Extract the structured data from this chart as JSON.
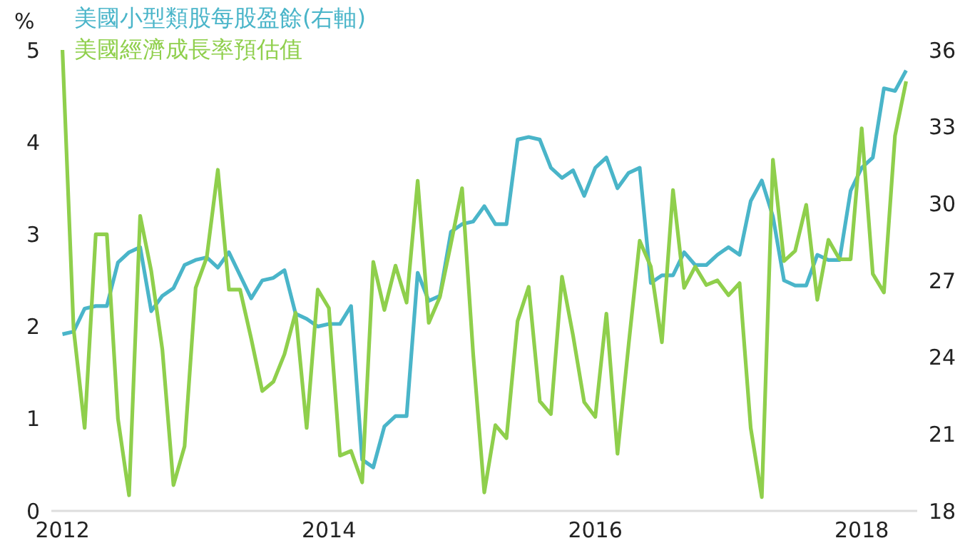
{
  "chart_data": {
    "type": "line",
    "ylabel": "%",
    "legend": "top left",
    "x": [
      "2012-01",
      "2012-02",
      "2012-03",
      "2012-04",
      "2012-05",
      "2012-06",
      "2012-07",
      "2012-08",
      "2012-09",
      "2012-10",
      "2012-11",
      "2012-12",
      "2013-01",
      "2013-02",
      "2013-03",
      "2013-04",
      "2013-05",
      "2013-06",
      "2013-07",
      "2013-08",
      "2013-09",
      "2013-10",
      "2013-11",
      "2013-12",
      "2014-01",
      "2014-02",
      "2014-03",
      "2014-04",
      "2014-05",
      "2014-06",
      "2014-07",
      "2014-08",
      "2014-09",
      "2014-10",
      "2014-11",
      "2014-12",
      "2015-01",
      "2015-02",
      "2015-03",
      "2015-04",
      "2015-05",
      "2015-06",
      "2015-07",
      "2015-08",
      "2015-09",
      "2015-10",
      "2015-11",
      "2015-12",
      "2016-01",
      "2016-02",
      "2016-03",
      "2016-04",
      "2016-05",
      "2016-06",
      "2016-07",
      "2016-08",
      "2016-09",
      "2016-10",
      "2016-11",
      "2016-12",
      "2017-01",
      "2017-02",
      "2017-03",
      "2017-04",
      "2017-05",
      "2017-06",
      "2017-07",
      "2017-08",
      "2017-09",
      "2017-10",
      "2017-11",
      "2017-12",
      "2018-01",
      "2018-02",
      "2018-03",
      "2018-04",
      "2018-05"
    ],
    "xlim": [
      "2011-12",
      "2018-06"
    ],
    "xticks": [
      "2012",
      "2014",
      "2016",
      "2018"
    ],
    "ylim": [
      0,
      5
    ],
    "yticks": [
      0,
      1,
      2,
      3,
      4,
      5
    ],
    "y2lim": [
      18,
      36
    ],
    "y2ticks": [
      18,
      21,
      24,
      27,
      30,
      33,
      36
    ],
    "series": [
      {
        "name": "美國小型類股每股盈餘(右軸)",
        "color": "#4ab5c9",
        "axis": "y2",
        "values": [
          24.9,
          25.0,
          25.9,
          26.0,
          26.0,
          27.7,
          28.1,
          28.3,
          25.8,
          26.4,
          26.7,
          27.6,
          27.8,
          27.9,
          27.5,
          28.1,
          27.2,
          26.3,
          27.0,
          27.1,
          27.4,
          25.7,
          25.5,
          25.2,
          25.3,
          25.3,
          26.0,
          20.0,
          19.7,
          21.3,
          21.7,
          21.7,
          27.3,
          26.2,
          26.4,
          28.9,
          29.2,
          29.3,
          29.9,
          29.2,
          29.2,
          32.5,
          32.6,
          32.5,
          31.4,
          31.0,
          31.3,
          30.3,
          31.4,
          31.8,
          30.6,
          31.2,
          31.4,
          26.9,
          27.2,
          27.2,
          28.1,
          27.6,
          27.6,
          28.0,
          28.3,
          28.0,
          30.1,
          30.9,
          29.5,
          27.0,
          26.8,
          26.8,
          28.0,
          27.8,
          27.8,
          30.5,
          31.4,
          31.8,
          34.5,
          34.4,
          35.2
        ]
      },
      {
        "name": "美國經濟成長率預估值",
        "color": "#8fcf4c",
        "values": [
          5.0,
          1.98,
          0.9,
          3.0,
          3.0,
          1.0,
          0.17,
          3.2,
          2.6,
          1.75,
          0.28,
          0.7,
          2.42,
          2.75,
          3.7,
          2.4,
          2.4,
          1.87,
          1.3,
          1.4,
          1.7,
          2.15,
          0.9,
          2.4,
          2.2,
          0.6,
          0.65,
          0.31,
          2.7,
          2.18,
          2.66,
          2.26,
          3.58,
          2.04,
          2.32,
          2.9,
          3.5,
          1.7,
          0.2,
          0.93,
          0.79,
          2.06,
          2.43,
          1.19,
          1.05,
          2.54,
          1.9,
          1.18,
          1.02,
          2.14,
          0.62,
          1.8,
          2.93,
          2.65,
          1.83,
          3.48,
          2.42,
          2.65,
          2.45,
          2.5,
          2.34,
          2.47,
          0.9,
          0.15,
          3.81,
          2.71,
          2.82,
          3.32,
          2.29,
          2.94,
          2.73,
          2.73,
          4.15,
          2.57,
          2.37,
          4.07,
          4.66
        ]
      }
    ]
  }
}
